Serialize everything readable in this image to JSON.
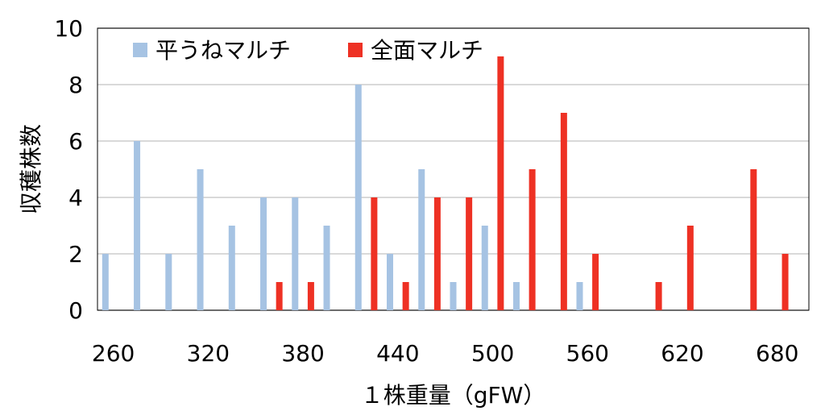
{
  "chart_data": {
    "type": "bar",
    "xlabel": "１株重量（gFW）",
    "ylabel": "収穫株数",
    "ylim": [
      0,
      10
    ],
    "yticks": [
      "0",
      "2",
      "4",
      "6",
      "8",
      "10"
    ],
    "xtick_labels": [
      "260",
      "320",
      "380",
      "440",
      "500",
      "560",
      "620",
      "680"
    ],
    "grid": true,
    "legend_position": "top-left",
    "categories": [
      "260",
      "280",
      "300",
      "320",
      "340",
      "360",
      "380",
      "400",
      "420",
      "440",
      "460",
      "480",
      "500",
      "520",
      "540",
      "560",
      "580",
      "600",
      "620",
      "640",
      "660",
      "680"
    ],
    "series": [
      {
        "name": "平うねマルチ",
        "color": "#a6c3e3",
        "values": [
          2,
          6,
          2,
          5,
          3,
          4,
          4,
          3,
          8,
          2,
          5,
          1,
          3,
          1,
          0,
          1,
          0,
          0,
          0,
          0,
          0,
          0
        ]
      },
      {
        "name": "全面マルチ",
        "color": "#ee3124",
        "values": [
          0,
          0,
          0,
          0,
          0,
          1,
          1,
          0,
          4,
          1,
          4,
          4,
          9,
          5,
          7,
          2,
          0,
          1,
          3,
          0,
          5,
          2
        ]
      }
    ]
  }
}
